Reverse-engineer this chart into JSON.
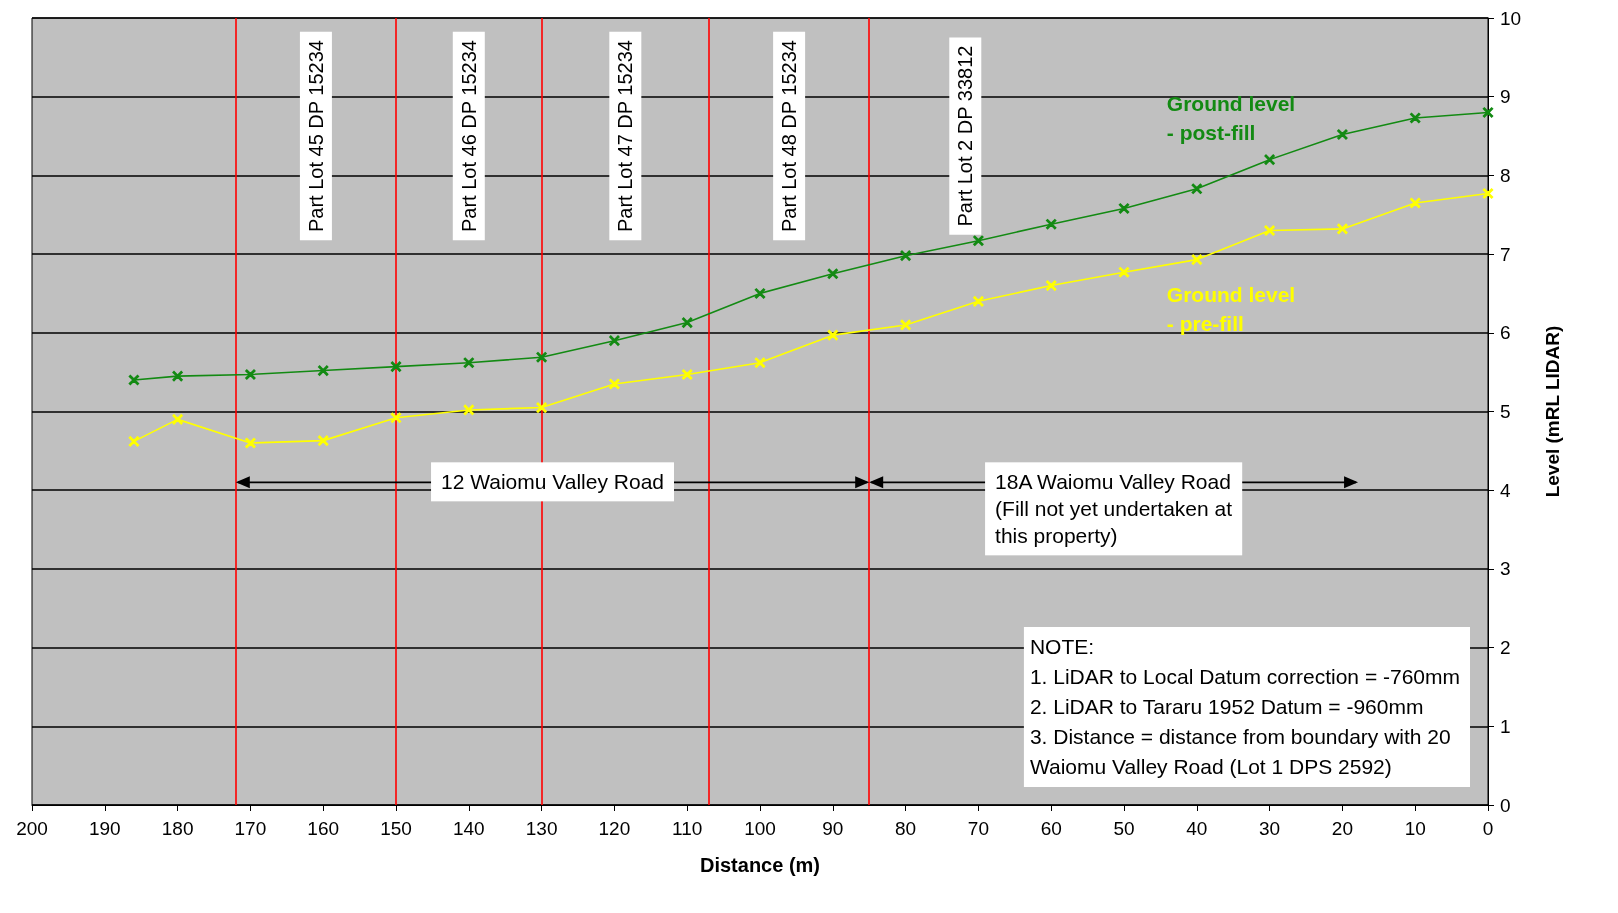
{
  "chart_data": {
    "type": "line",
    "xlabel": "Distance (m)",
    "ylabel": "Level (mRL LIDAR)",
    "x": [
      186,
      180,
      170,
      160,
      150,
      140,
      130,
      120,
      110,
      100,
      90,
      80,
      70,
      60,
      50,
      40,
      30,
      20,
      10,
      0
    ],
    "series": [
      {
        "name": "Ground level\n- post-fill",
        "color": "#138a13",
        "values": [
          5.4,
          5.45,
          5.47,
          5.52,
          5.57,
          5.62,
          5.69,
          5.9,
          6.13,
          6.5,
          6.75,
          6.98,
          7.17,
          7.38,
          7.58,
          7.83,
          8.2,
          8.52,
          8.73,
          8.8
        ]
      },
      {
        "name": "Ground level\n- pre-fill",
        "color": "#ffff00",
        "values": [
          4.62,
          4.9,
          4.6,
          4.63,
          4.92,
          5.02,
          5.05,
          5.35,
          5.47,
          5.62,
          5.97,
          6.1,
          6.4,
          6.6,
          6.77,
          6.93,
          7.3,
          7.32,
          7.65,
          7.77
        ]
      }
    ],
    "xlim": [
      200,
      0
    ],
    "xticks": [
      200,
      190,
      180,
      170,
      160,
      150,
      140,
      130,
      120,
      110,
      100,
      90,
      80,
      70,
      60,
      50,
      40,
      30,
      20,
      10,
      0
    ],
    "ylim": [
      0,
      10
    ],
    "yticks": [
      0,
      1,
      2,
      3,
      4,
      5,
      6,
      7,
      8,
      9,
      10
    ],
    "grid": "y",
    "legend": false,
    "marker": "cross",
    "line_style": "solid",
    "ref_lines": [
      {
        "axis": "x",
        "value": 172,
        "color": "#ff0000"
      },
      {
        "axis": "x",
        "value": 150,
        "color": "#ff0000"
      },
      {
        "axis": "x",
        "value": 130,
        "color": "#ff0000"
      },
      {
        "axis": "x",
        "value": 107,
        "color": "#ff0000"
      },
      {
        "axis": "x",
        "value": 85,
        "color": "#ff0000"
      }
    ],
    "annotations": [
      "Part Lot 45 DP 15234",
      "Part Lot 46 DP 15234",
      "Part Lot 47 DP 15234",
      "Part Lot 48 DP 15234",
      "Part Lot 2 DP 33812",
      "12 Waiomu Valley Road",
      "18A Waiomu Valley Road\n(Fill not yet undertaken at\nthis property)",
      "NOTE:\n1. LiDAR to Local Datum correction = -760mm\n2. LiDAR to Tararu 1952 Datum = -960mm\n3. Distance = distance from boundary with 20\nWaiomu Valley Road (Lot 1 DPS 2592)"
    ]
  }
}
